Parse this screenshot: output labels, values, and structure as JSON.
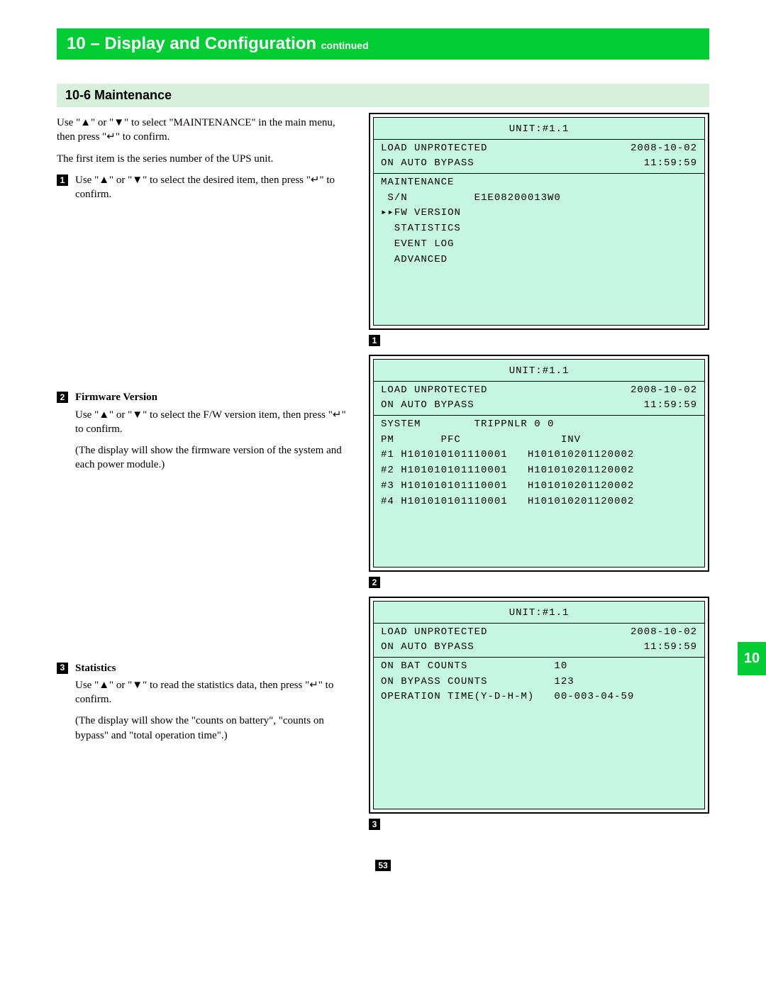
{
  "chapter": {
    "title": "10 – Display and Configuration",
    "continued": "continued"
  },
  "section": {
    "title": "10-6 Maintenance"
  },
  "intro": {
    "p1": "Use \"▲\" or \"▼\" to select \"MAINTENANCE\" in the main menu, then press \"↵\" to confirm.",
    "p2": "The first item is the series number of the UPS unit."
  },
  "steps": {
    "s1": {
      "num": "1",
      "text": "Use \"▲\" or \"▼\" to select the desired item, then press \"↵\" to confirm."
    },
    "s2": {
      "num": "2",
      "title": "Firmware Version",
      "p1": "Use \"▲\" or \"▼\" to select the F/W version item, then press \"↵\" to confirm.",
      "p2": "(The display will show the firmware version of the system and each power module.)"
    },
    "s3": {
      "num": "3",
      "title": "Statistics",
      "p1": "Use \"▲\" or \"▼\" to read the statistics data, then press \"↵\" to confirm.",
      "p2": "(The display will show the \"counts on battery\", \"counts on bypass\" and \"total operation time\".)"
    }
  },
  "lcd_common": {
    "unit": "UNIT:#1.1",
    "line1_left": "LOAD UNPROTECTED",
    "line1_right": "2008-10-02",
    "line2_left": "ON AUTO BYPASS",
    "line2_right": "11:59:59"
  },
  "panel1": {
    "label": "1",
    "l1": "MAINTENANCE",
    "l2": " S/N          E1E08200013W0",
    "l3": "▸▸FW VERSION",
    "l4": "  STATISTICS",
    "l5": "  EVENT LOG",
    "l6": "  ADVANCED"
  },
  "panel2": {
    "label": "2",
    "l1": "SYSTEM        TRIPPNLR 0 0",
    "l2": "PM       PFC               INV",
    "l3": "#1 H101010101110001   H101010201120002",
    "l4": "#2 H101010101110001   H101010201120002",
    "l5": "#3 H101010101110001   H101010201120002",
    "l6": "#4 H101010101110001   H101010201120002"
  },
  "panel3": {
    "label": "3",
    "l1": "ON BAT COUNTS             10",
    "l2": "ON BYPASS COUNTS          123",
    "l3": "OPERATION TIME(Y-D-H-M)   00-003-04-59"
  },
  "side_tab": "10",
  "page_number": "53",
  "colors": {
    "green": "#00cc33",
    "section_bg": "#d6f0dc",
    "lcd_bg": "#c6f7e2"
  }
}
